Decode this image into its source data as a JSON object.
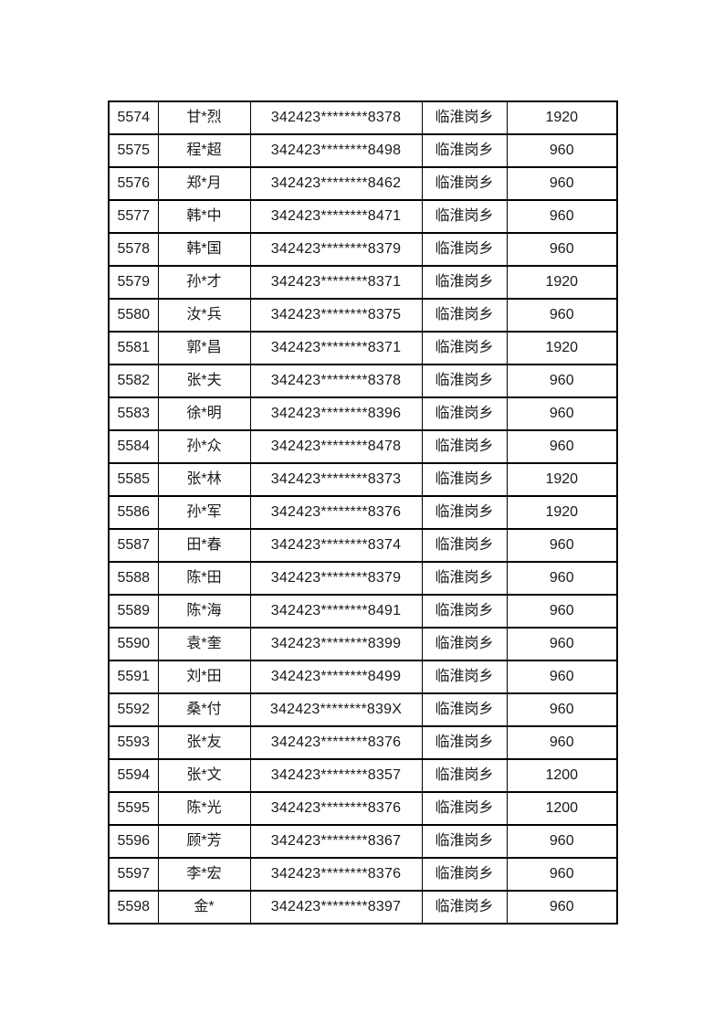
{
  "page": {
    "background_color": "#ffffff",
    "text_color": "#1a1a1a",
    "border_color": "#000000"
  },
  "table": {
    "column_keys": [
      "serial",
      "name",
      "id_number",
      "township",
      "amount"
    ],
    "rows": [
      {
        "serial": "5574",
        "name": "甘*烈",
        "id_number": "342423********8378",
        "township": "临淮岗乡",
        "amount": "1920"
      },
      {
        "serial": "5575",
        "name": "程*超",
        "id_number": "342423********8498",
        "township": "临淮岗乡",
        "amount": "960"
      },
      {
        "serial": "5576",
        "name": "郑*月",
        "id_number": "342423********8462",
        "township": "临淮岗乡",
        "amount": "960"
      },
      {
        "serial": "5577",
        "name": "韩*中",
        "id_number": "342423********8471",
        "township": "临淮岗乡",
        "amount": "960"
      },
      {
        "serial": "5578",
        "name": "韩*国",
        "id_number": "342423********8379",
        "township": "临淮岗乡",
        "amount": "960"
      },
      {
        "serial": "5579",
        "name": "孙*才",
        "id_number": "342423********8371",
        "township": "临淮岗乡",
        "amount": "1920"
      },
      {
        "serial": "5580",
        "name": "汝*兵",
        "id_number": "342423********8375",
        "township": "临淮岗乡",
        "amount": "960"
      },
      {
        "serial": "5581",
        "name": "郭*昌",
        "id_number": "342423********8371",
        "township": "临淮岗乡",
        "amount": "1920"
      },
      {
        "serial": "5582",
        "name": "张*夫",
        "id_number": "342423********8378",
        "township": "临淮岗乡",
        "amount": "960"
      },
      {
        "serial": "5583",
        "name": "徐*明",
        "id_number": "342423********8396",
        "township": "临淮岗乡",
        "amount": "960"
      },
      {
        "serial": "5584",
        "name": "孙*众",
        "id_number": "342423********8478",
        "township": "临淮岗乡",
        "amount": "960"
      },
      {
        "serial": "5585",
        "name": "张*林",
        "id_number": "342423********8373",
        "township": "临淮岗乡",
        "amount": "1920"
      },
      {
        "serial": "5586",
        "name": "孙*军",
        "id_number": "342423********8376",
        "township": "临淮岗乡",
        "amount": "1920"
      },
      {
        "serial": "5587",
        "name": "田*春",
        "id_number": "342423********8374",
        "township": "临淮岗乡",
        "amount": "960"
      },
      {
        "serial": "5588",
        "name": "陈*田",
        "id_number": "342423********8379",
        "township": "临淮岗乡",
        "amount": "960"
      },
      {
        "serial": "5589",
        "name": "陈*海",
        "id_number": "342423********8491",
        "township": "临淮岗乡",
        "amount": "960"
      },
      {
        "serial": "5590",
        "name": "袁*奎",
        "id_number": "342423********8399",
        "township": "临淮岗乡",
        "amount": "960"
      },
      {
        "serial": "5591",
        "name": "刘*田",
        "id_number": "342423********8499",
        "township": "临淮岗乡",
        "amount": "960"
      },
      {
        "serial": "5592",
        "name": "桑*付",
        "id_number": "342423********839X",
        "township": "临淮岗乡",
        "amount": "960"
      },
      {
        "serial": "5593",
        "name": "张*友",
        "id_number": "342423********8376",
        "township": "临淮岗乡",
        "amount": "960"
      },
      {
        "serial": "5594",
        "name": "张*文",
        "id_number": "342423********8357",
        "township": "临淮岗乡",
        "amount": "1200"
      },
      {
        "serial": "5595",
        "name": "陈*光",
        "id_number": "342423********8376",
        "township": "临淮岗乡",
        "amount": "1200"
      },
      {
        "serial": "5596",
        "name": "顾*芳",
        "id_number": "342423********8367",
        "township": "临淮岗乡",
        "amount": "960"
      },
      {
        "serial": "5597",
        "name": "李*宏",
        "id_number": "342423********8376",
        "township": "临淮岗乡",
        "amount": "960"
      },
      {
        "serial": "5598",
        "name": "金*",
        "id_number": "342423********8397",
        "township": "临淮岗乡",
        "amount": "960"
      }
    ]
  }
}
